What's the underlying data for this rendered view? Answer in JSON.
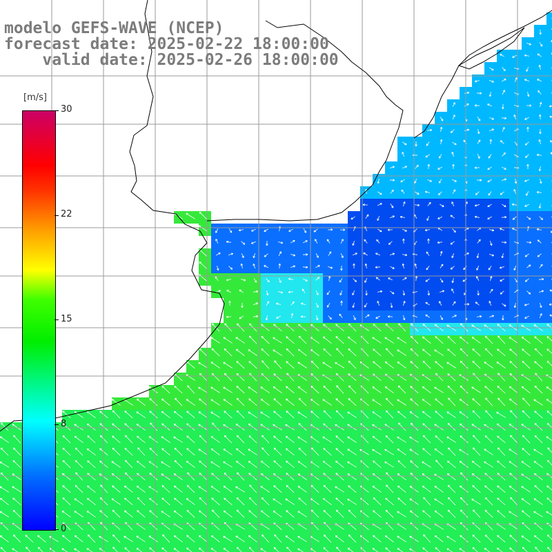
{
  "titles": {
    "model": "modelo GEFS-WAVE (NCEP)",
    "forecast": "forecast date: 2025-02-22 18:00:00",
    "valid": "    valid date: 2025-02-26 18:00:00"
  },
  "colorbar": {
    "unit": "[m/s]",
    "ticks": [
      "30",
      "22",
      "15",
      "8",
      "0"
    ],
    "tick_values": [
      30,
      22,
      15,
      8,
      0
    ],
    "range": [
      0,
      30
    ]
  },
  "colors": {
    "water_strong": "#35e93a",
    "water_mid": "#22ee55",
    "water_cyan": "#22e7ee",
    "water_light_blue": "#00b8ff",
    "water_blue": "#0a6fff",
    "water_deep_blue": "#004cf0",
    "grid": "#9a9a9a",
    "coast": "#000000"
  },
  "map": {
    "variable": "wind speed and direction",
    "dominant_wind_direction_south": "from southeast (arrows pointing northwest)",
    "dominant_wind_direction_gulf": "weak, variable"
  }
}
